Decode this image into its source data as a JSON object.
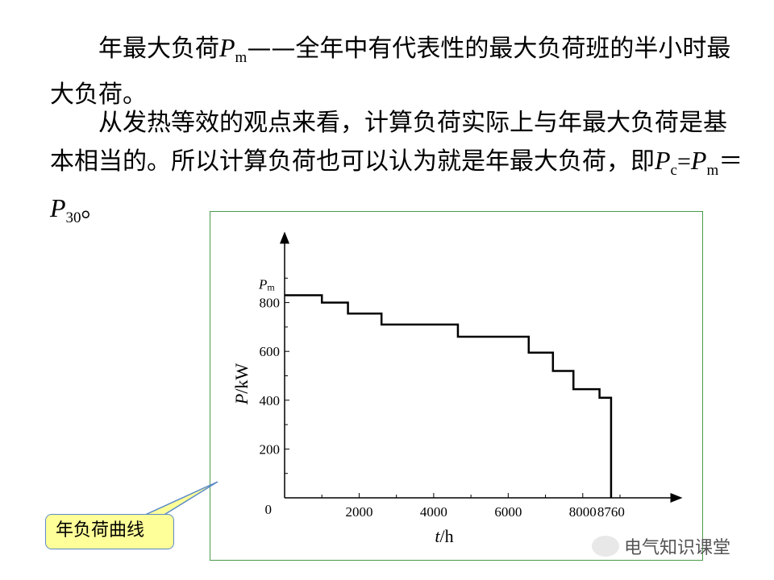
{
  "text": {
    "p1": {
      "a": "年最大负荷",
      "P": "P",
      "sub": "m",
      "b": "——全年中有代表性的最大负荷班的半小时最大负荷。"
    },
    "p2": {
      "a": "从发热等效的观点来看，计算负荷实际上与年最大负荷是基本相当的。所以计算负荷也可以认为就是年最大负荷，即",
      "P1": "P",
      "s1": "c",
      "eq1": "=",
      "P2": "P",
      "s2": "m",
      "eq2": "＝",
      "P3": "P",
      "s3": "30",
      "end": "。"
    }
  },
  "callout": {
    "label": "年负荷曲线"
  },
  "watermark": {
    "text": "电气知识课堂"
  },
  "chart_data": {
    "type": "line",
    "step": true,
    "x": [
      0,
      1000,
      1000,
      1700,
      1700,
      2600,
      2600,
      4650,
      4650,
      6550,
      6550,
      7200,
      7200,
      7750,
      7750,
      8450,
      8450,
      8760,
      8760
    ],
    "y": [
      830,
      830,
      800,
      800,
      755,
      755,
      710,
      710,
      660,
      660,
      595,
      595,
      520,
      520,
      445,
      445,
      410,
      410,
      0
    ],
    "xlim": [
      0,
      9800
    ],
    "ylim": [
      0,
      1000
    ],
    "x_ticks": [
      0,
      2000,
      4000,
      6000,
      8000,
      8760
    ],
    "x_tick_labels": [
      "2000",
      "4000",
      "6000",
      "8000",
      "8760"
    ],
    "y_ticks": [
      200,
      400,
      600,
      800
    ],
    "y_tick_labels": [
      "200",
      "400",
      "600",
      "800"
    ],
    "origin_label": "0",
    "pm_label": {
      "P": "P",
      "sub": "m"
    },
    "xlabel": {
      "t": "t",
      "unit": "/h"
    },
    "ylabel": {
      "P": "P",
      "unit": "/kW"
    },
    "colors": {
      "line": "#000000",
      "frame": "#4a9a4a"
    }
  }
}
